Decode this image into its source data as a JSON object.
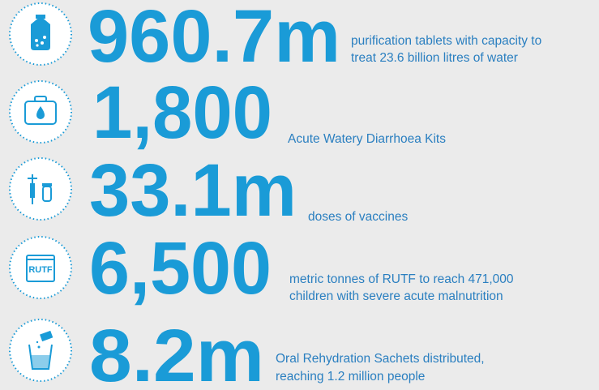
{
  "items": [
    {
      "figure": "960.7m",
      "description": [
        "purification tablets with capacity to",
        "treat 23.6 billion litres of water"
      ]
    },
    {
      "figure": "1,800",
      "description": [
        "Acute Watery Diarrhoea Kits"
      ]
    },
    {
      "figure": "33.1m",
      "description": [
        "doses of vaccines"
      ]
    },
    {
      "figure": "6,500",
      "description": [
        "metric tonnes of RUTF to reach 471,000",
        "children with severe acute malnutrition"
      ],
      "icon_label": "RUTF"
    },
    {
      "figure": "8.2m",
      "description": [
        "Oral Rehydration Sachets distributed,",
        "reaching 1.2 million people"
      ]
    }
  ]
}
